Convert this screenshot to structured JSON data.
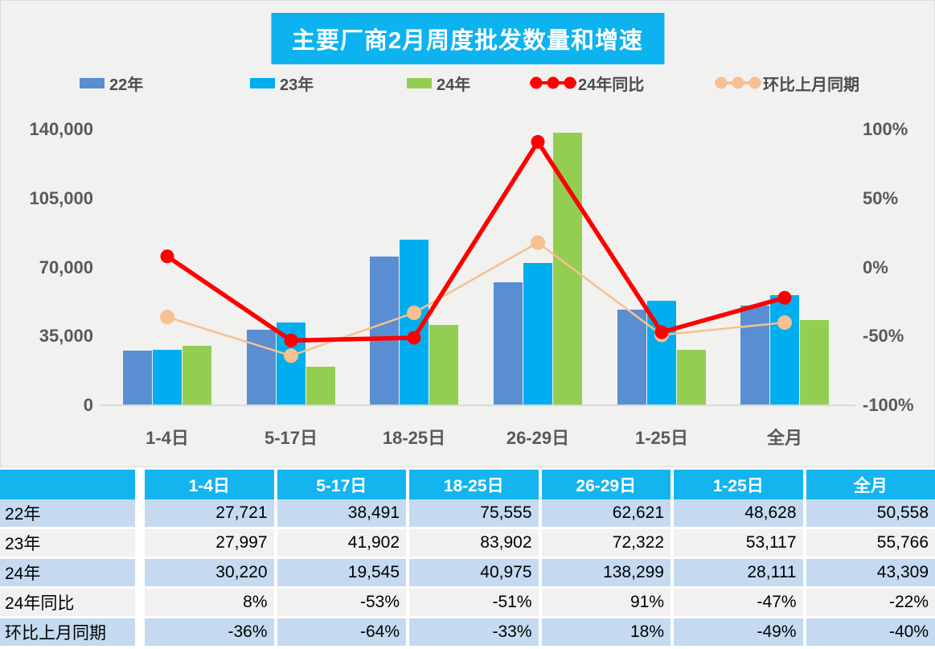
{
  "title": {
    "text": "主要厂商2月周度批发数量和增速",
    "bg": "#0db3ef",
    "color": "#ffffff"
  },
  "colors": {
    "bar_22": "#5a8ed2",
    "bar_23": "#00aeef",
    "bar_24": "#93ce52",
    "line_yoy": "#fe0000",
    "line_mom": "#f6c090",
    "axis_text": "#595959",
    "table_header_bg": "#14b4ee",
    "table_row_blue": "#c5daf0",
    "table_row_gray": "#f1f1f1",
    "chart_bg": "#f1f1f0"
  },
  "legend": [
    {
      "label": "22年",
      "marker": "square",
      "color": "#5a8ed2"
    },
    {
      "label": "23年",
      "marker": "square",
      "color": "#00aeef"
    },
    {
      "label": "24年",
      "marker": "square",
      "color": "#93ce52"
    },
    {
      "label": "24年同比",
      "marker": "line-dots",
      "color": "#fe0000"
    },
    {
      "label": "环比上月同期",
      "marker": "line-dots",
      "color": "#f6c090"
    }
  ],
  "chart_data": {
    "type": "bar+line",
    "title": "主要厂商2月周度批发数量和增速",
    "categories": [
      "1-4日",
      "5-17日",
      "18-25日",
      "26-29日",
      "1-25日",
      "全月"
    ],
    "bar_series": [
      {
        "name": "22年",
        "color": "#5a8ed2",
        "values": [
          27721,
          38491,
          75555,
          62621,
          48628,
          50558
        ]
      },
      {
        "name": "23年",
        "color": "#00aeef",
        "values": [
          27997,
          41902,
          83902,
          72322,
          53117,
          55766
        ]
      },
      {
        "name": "24年",
        "color": "#93ce52",
        "values": [
          30220,
          19545,
          40975,
          138299,
          28111,
          43309
        ]
      }
    ],
    "line_series": [
      {
        "name": "24年同比",
        "color": "#fe0000",
        "axis": "right",
        "values_pct": [
          8,
          -53,
          -51,
          91,
          -47,
          -22
        ]
      },
      {
        "name": "环比上月同期",
        "color": "#f6c090",
        "axis": "right",
        "values_pct": [
          -36,
          -64,
          -33,
          18,
          -49,
          -40
        ]
      }
    ],
    "left_axis": {
      "min": 0,
      "max": 140000,
      "ticks": [
        {
          "label": "140,000",
          "value": 140000
        },
        {
          "label": "105,000",
          "value": 105000
        },
        {
          "label": "70,000",
          "value": 70000
        },
        {
          "label": "35,000",
          "value": 35000
        },
        {
          "label": "0",
          "value": 0
        }
      ]
    },
    "right_axis": {
      "min": -100,
      "max": 100,
      "ticks": [
        {
          "label": "100%",
          "value": 100
        },
        {
          "label": "50%",
          "value": 50
        },
        {
          "label": "0%",
          "value": 0
        },
        {
          "label": "-50%",
          "value": -50
        },
        {
          "label": "-100%",
          "value": -100
        }
      ]
    },
    "legend_position": "top",
    "grid": false
  },
  "table": {
    "columns": [
      "1-4日",
      "5-17日",
      "18-25日",
      "26-29日",
      "1-25日",
      "全月"
    ],
    "rows": [
      {
        "label": "22年",
        "values": [
          "27,721",
          "38,491",
          "75,555",
          "62,621",
          "48,628",
          "50,558"
        ]
      },
      {
        "label": "23年",
        "values": [
          "27,997",
          "41,902",
          "83,902",
          "72,322",
          "53,117",
          "55,766"
        ]
      },
      {
        "label": "24年",
        "values": [
          "30,220",
          "19,545",
          "40,975",
          "138,299",
          "28,111",
          "43,309"
        ]
      },
      {
        "label": "24年同比",
        "values": [
          "8%",
          "-53%",
          "-51%",
          "91%",
          "-47%",
          "-22%"
        ]
      },
      {
        "label": "环比上月同期",
        "values": [
          "-36%",
          "-64%",
          "-33%",
          "18%",
          "-49%",
          "-40%"
        ]
      }
    ]
  }
}
